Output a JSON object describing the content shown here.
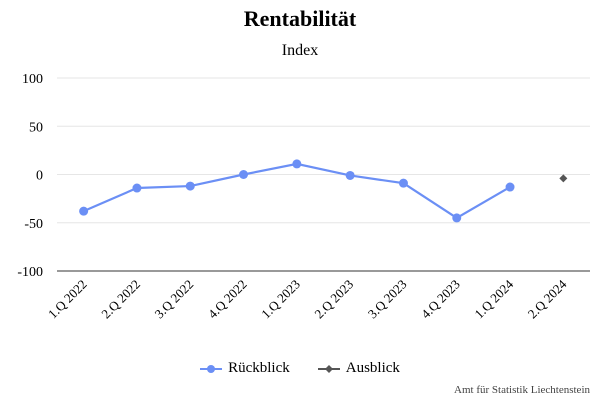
{
  "chart_data": {
    "type": "line",
    "title": "Rentabilität",
    "subtitle": "Index",
    "xlabel": "",
    "ylabel": "",
    "categories": [
      "1.Q 2022",
      "2.Q 2022",
      "3.Q 2022",
      "4.Q 2022",
      "1.Q 2023",
      "2.Q 2023",
      "3.Q 2023",
      "4.Q 2023",
      "1.Q 2024",
      "2.Q 2024"
    ],
    "ylim": [
      -100,
      100
    ],
    "yticks": [
      100,
      50,
      0,
      -50,
      -100
    ],
    "grid": true,
    "legend_position": "bottom",
    "series": [
      {
        "name": "Rückblick",
        "color": "#6b8ff5",
        "marker": "circle",
        "values": [
          -38,
          -14,
          -12,
          0,
          11,
          -1,
          -9,
          -45,
          -13,
          null
        ]
      },
      {
        "name": "Ausblick",
        "color": "#555555",
        "marker": "diamond",
        "values": [
          null,
          null,
          null,
          null,
          null,
          null,
          null,
          null,
          null,
          -4
        ]
      }
    ]
  },
  "credit": "Amt für Statistik Liechtenstein"
}
